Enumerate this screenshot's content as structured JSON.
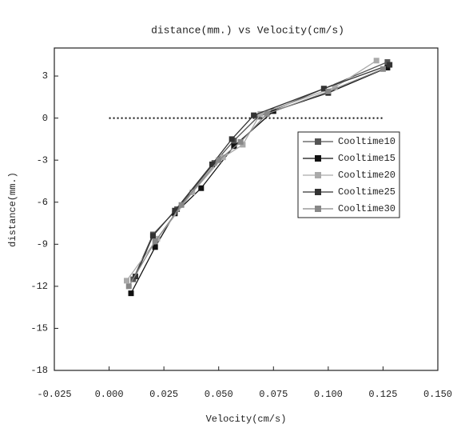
{
  "chart_data": {
    "type": "line",
    "title": "distance(mm.) vs Velocity(cm/s)",
    "x_label": "Velocity(cm/s)",
    "y_label": "distance(mm.)",
    "xlim": [
      -0.025,
      0.15
    ],
    "xticks": [
      -0.025,
      {
        "value": 0,
        "label": "0.000"
      },
      0.025,
      {
        "value": 0.05,
        "label": "0.050"
      },
      0.075,
      {
        "value": 0.1,
        "label": "0.100"
      },
      0.125,
      {
        "value": 0.15,
        "label": "0.150"
      }
    ],
    "ylim": [
      -18,
      5
    ],
    "yticks": [
      -18,
      -15,
      -12,
      -9,
      -6,
      -3,
      0,
      3
    ],
    "reference_line": {
      "y": 0,
      "x": [
        0,
        0.125
      ]
    },
    "legend": "right",
    "series": [
      {
        "name": "Cooltime10",
        "color": "#555555",
        "x": [
          0.011,
          0.02,
          0.031,
          0.048,
          0.057,
          0.068,
          0.098,
          0.127
        ],
        "values": [
          -11.5,
          -8.3,
          -6.5,
          -3.2,
          -1.6,
          0.1,
          2.1,
          4
        ]
      },
      {
        "name": "Cooltime15",
        "color": "#111111",
        "x": [
          0.01,
          0.021,
          0.03,
          0.042,
          0.057,
          0.075,
          0.1,
          0.127
        ],
        "values": [
          -12.5,
          -9.2,
          -6.8,
          -5,
          -2,
          0.5,
          1.8,
          3.6
        ]
      },
      {
        "name": "Cooltime20",
        "color": "#aaaaaa",
        "x": [
          0.008,
          0.022,
          0.038,
          0.052,
          0.061,
          0.069,
          0.103,
          0.122
        ],
        "values": [
          -11.6,
          -8.6,
          -5.3,
          -2.8,
          -1.9,
          0.3,
          2.2,
          4.1
        ]
      },
      {
        "name": "Cooltime25",
        "color": "#333333",
        "x": [
          0.012,
          0.02,
          0.03,
          0.047,
          0.056,
          0.066,
          0.098,
          0.128
        ],
        "values": [
          -11.3,
          -8.4,
          -6.6,
          -3.3,
          -1.5,
          0.2,
          2.1,
          3.8
        ]
      },
      {
        "name": "Cooltime30",
        "color": "#888888",
        "x": [
          0.009,
          0.021,
          0.033,
          0.05,
          0.06,
          0.072,
          0.1,
          0.125
        ],
        "values": [
          -12,
          -8.8,
          -6.2,
          -3,
          -1.7,
          0.3,
          1.9,
          3.5
        ]
      }
    ]
  }
}
